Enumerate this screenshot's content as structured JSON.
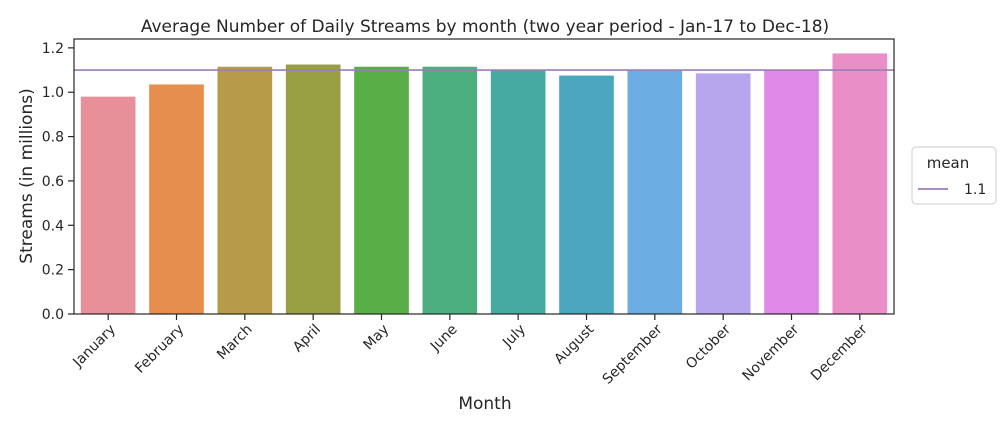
{
  "chart_data": {
    "type": "bar",
    "title": "Average Number of Daily Streams by month (two year period - Jan-17 to Dec-18)",
    "xlabel": "Month",
    "ylabel": "Streams (in millions)",
    "categories": [
      "January",
      "February",
      "March",
      "April",
      "May",
      "June",
      "July",
      "August",
      "September",
      "October",
      "November",
      "December"
    ],
    "values": [
      0.98,
      1.035,
      1.115,
      1.125,
      1.115,
      1.115,
      1.1,
      1.075,
      1.1,
      1.085,
      1.1,
      1.175
    ],
    "colors": [
      "#e8909a",
      "#e58e4e",
      "#b89b48",
      "#99a043",
      "#5aae48",
      "#4caf80",
      "#47aaa1",
      "#4ba7bd",
      "#6bade3",
      "#b7a6ee",
      "#e089e8",
      "#ea8ec8"
    ],
    "ylim": [
      0,
      1.24
    ],
    "yticks": [
      0.0,
      0.2,
      0.4,
      0.6,
      0.8,
      1.0,
      1.2
    ],
    "ytick_labels": [
      "0.0",
      "0.2",
      "0.4",
      "0.6",
      "0.8",
      "1.0",
      "1.2"
    ],
    "mean_line": {
      "value": 1.1,
      "color": "#9a7eb5"
    },
    "legend": {
      "title": "mean",
      "entries": [
        {
          "label": "1.1",
          "color": "#9a7eb5"
        }
      ],
      "position": "right"
    },
    "grid": false
  }
}
